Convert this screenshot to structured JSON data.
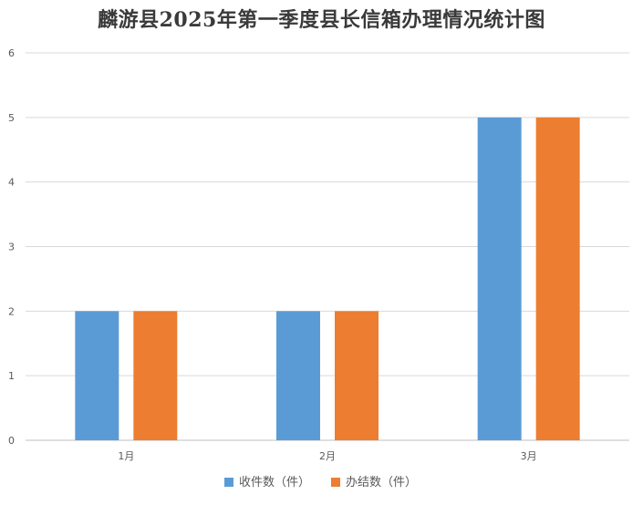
{
  "chart_data": {
    "type": "bar",
    "title": "麟游县2025年第一季度县长信箱办理情况统计图",
    "categories": [
      "1月",
      "2月",
      "3月"
    ],
    "series": [
      {
        "name": "收件数（件）",
        "values": [
          2,
          2,
          5
        ],
        "color": "#5b9bd5"
      },
      {
        "name": "办结数（件）",
        "values": [
          2,
          2,
          5
        ],
        "color": "#ed7d31"
      }
    ],
    "ylim": [
      0,
      6
    ],
    "yticks": [
      "0",
      "1",
      "2",
      "3",
      "4",
      "5",
      "6"
    ],
    "grid": true,
    "legend_position": "bottom"
  }
}
